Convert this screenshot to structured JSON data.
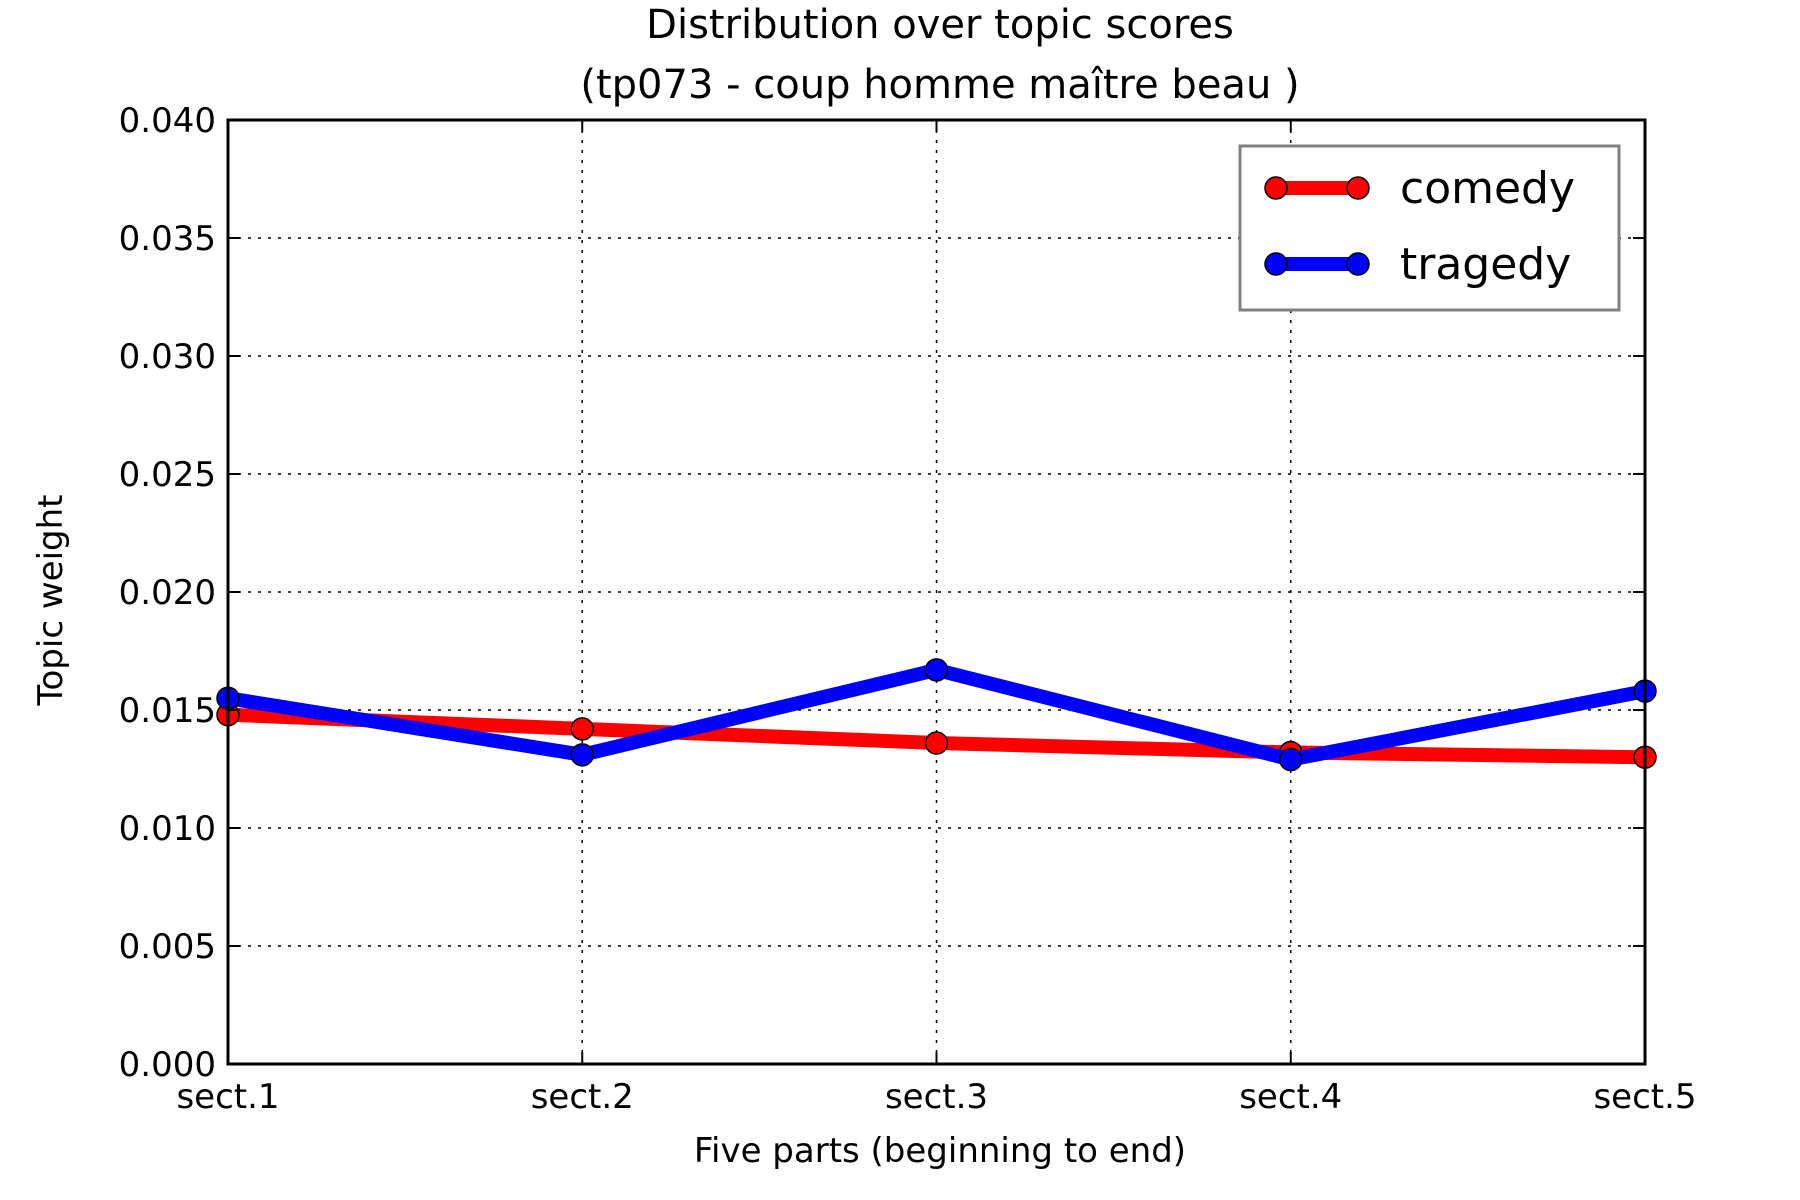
{
  "chart_data": {
    "type": "line",
    "title": "Distribution over topic scores",
    "subtitle": "(tp073 - coup homme maître beau )",
    "xlabel": "Five parts (beginning to end)",
    "ylabel": "Topic weight",
    "categories": [
      "sect.1",
      "sect.2",
      "sect.3",
      "sect.4",
      "sect.5"
    ],
    "ylim": [
      0.0,
      0.04
    ],
    "yticks": [
      "0.000",
      "0.005",
      "0.010",
      "0.015",
      "0.020",
      "0.025",
      "0.030",
      "0.035",
      "0.040"
    ],
    "ytick_values": [
      0.0,
      0.005,
      0.01,
      0.015,
      0.02,
      0.025,
      0.03,
      0.035,
      0.04
    ],
    "grid": true,
    "legend_position": "top-right",
    "series": [
      {
        "name": "comedy",
        "color": "#ff0000",
        "values": [
          0.0148,
          0.0142,
          0.0136,
          0.0132,
          0.013
        ]
      },
      {
        "name": "tragedy",
        "color": "#0000ff",
        "values": [
          0.0155,
          0.0131,
          0.0167,
          0.0129,
          0.0158
        ]
      }
    ]
  }
}
